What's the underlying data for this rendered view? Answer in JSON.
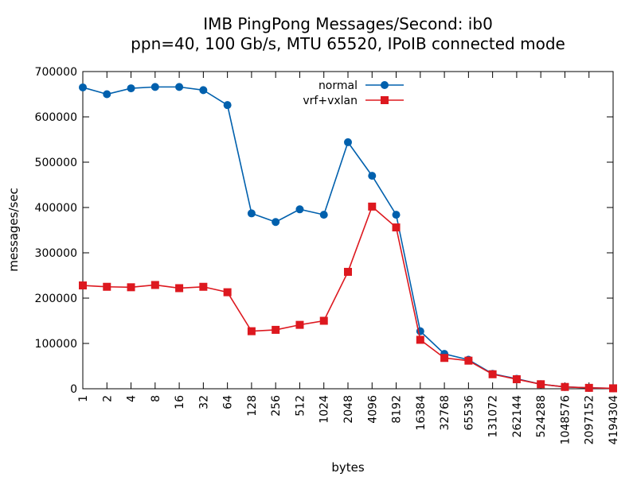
{
  "chart_data": {
    "type": "line",
    "title": [
      "IMB PingPong Messages/Second: ib0",
      "ppn=40, 100 Gb/s, MTU 65520, IPoIB connected mode"
    ],
    "xlabel": "bytes",
    "ylabel": "messages/sec",
    "categories": [
      "1",
      "2",
      "4",
      "8",
      "16",
      "32",
      "64",
      "128",
      "256",
      "512",
      "1024",
      "2048",
      "4096",
      "8192",
      "16384",
      "32768",
      "65536",
      "131072",
      "262144",
      "524288",
      "1048576",
      "2097152",
      "4194304"
    ],
    "ylim": [
      0,
      700000
    ],
    "yticks": [
      "0",
      "100000",
      "200000",
      "300000",
      "400000",
      "500000",
      "600000",
      "700000"
    ],
    "legend_position": "top-center",
    "grid": false,
    "series": [
      {
        "name": "normal",
        "color": "#0060ad",
        "marker": "circle",
        "values": [
          665000,
          650000,
          663000,
          666000,
          666000,
          659000,
          626000,
          387000,
          368000,
          396000,
          384000,
          544000,
          470000,
          384000,
          127000,
          77000,
          64000,
          33000,
          22000,
          10000,
          4000,
          2000,
          1000
        ]
      },
      {
        "name": "vrf+vxlan",
        "color": "#dd181f",
        "marker": "square",
        "values": [
          228000,
          225000,
          224000,
          229000,
          222000,
          225000,
          213000,
          127000,
          130000,
          141000,
          150000,
          258000,
          402000,
          356000,
          108000,
          68000,
          62000,
          32000,
          21000,
          10000,
          4000,
          2000,
          1000
        ]
      }
    ]
  }
}
